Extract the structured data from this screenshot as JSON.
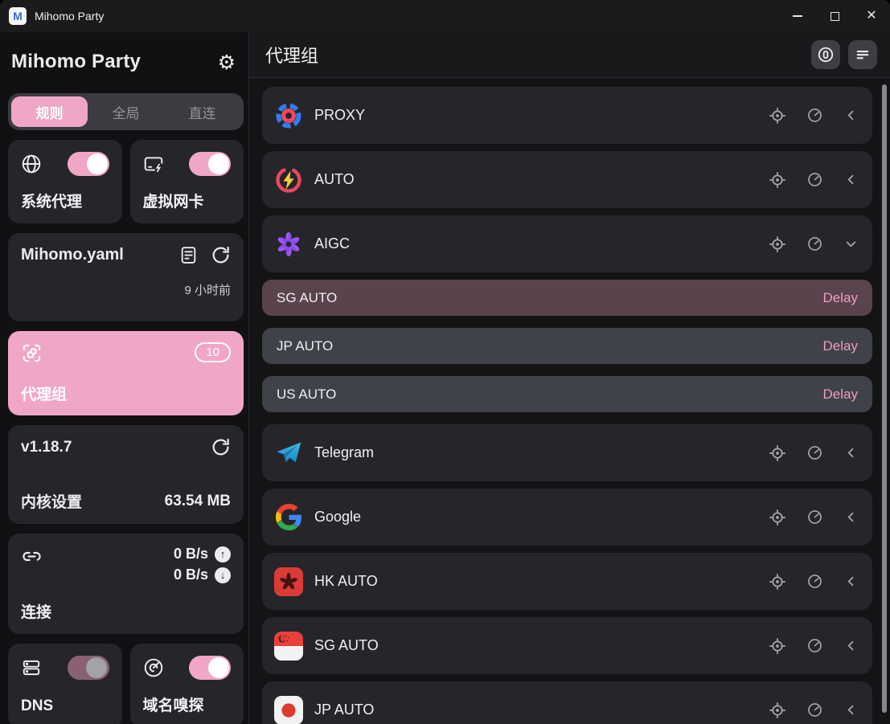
{
  "window": {
    "title": "Mihomo Party",
    "controls": {
      "minimize": "minimize",
      "maximize": "maximize",
      "close": "✕"
    }
  },
  "colors": {
    "accent_pink": "#f0a7c7",
    "delay_pink": "#f09cc5",
    "selected_subrow": "#59434d",
    "card_bg": "#26262a",
    "subrow_bg": "#404249"
  },
  "sidebar": {
    "app_title": "Mihomo Party",
    "settings_icon": "gear-icon",
    "tabs": [
      {
        "label": "规则",
        "active": true
      },
      {
        "label": "全局",
        "active": false
      },
      {
        "label": "直连",
        "active": false
      }
    ],
    "system_proxy": {
      "label": "系统代理",
      "icon": "globe-icon",
      "on": true
    },
    "tun": {
      "label": "虚拟网卡",
      "icon": "network-card-icon",
      "on": true
    },
    "profile": {
      "name": "Mihomo.yaml",
      "updated": "9 小时前",
      "icons": [
        "document-icon",
        "refresh-icon"
      ]
    },
    "proxy_groups_card": {
      "label": "代理组",
      "badge": "10",
      "icon": "group-scan-icon"
    },
    "core": {
      "version": "v1.18.7",
      "label": "内核设置",
      "memory": "63.54 MB",
      "icon": "refresh-icon"
    },
    "connections": {
      "label": "连接",
      "upload": "0 B/s",
      "download": "0 B/s",
      "icon": "link-icon",
      "up_icon": "up-arrow-circle-icon",
      "down_icon": "down-arrow-circle-icon"
    },
    "dns": {
      "label": "DNS",
      "icon": "server-stack-icon",
      "on": false
    },
    "sniff": {
      "label": "域名嗅探",
      "icon": "radar-icon",
      "on": true
    }
  },
  "main": {
    "title": "代理组",
    "header_buttons": [
      {
        "name": "zero-circle-icon"
      },
      {
        "name": "text-lines-icon"
      }
    ],
    "groups": [
      {
        "name": "PROXY",
        "icon": "proxy",
        "expanded": false
      },
      {
        "name": "AUTO",
        "icon": "auto",
        "expanded": false
      },
      {
        "name": "AIGC",
        "icon": "openai",
        "expanded": true,
        "children": [
          {
            "name": "SG AUTO",
            "delay_label": "Delay",
            "selected": true
          },
          {
            "name": "JP AUTO",
            "delay_label": "Delay",
            "selected": false
          },
          {
            "name": "US AUTO",
            "delay_label": "Delay",
            "selected": false
          }
        ]
      },
      {
        "name": "Telegram",
        "icon": "telegram",
        "expanded": false
      },
      {
        "name": "Google",
        "icon": "google",
        "expanded": false
      },
      {
        "name": "HK AUTO",
        "icon": "flag-hk",
        "expanded": false
      },
      {
        "name": "SG AUTO",
        "icon": "flag-sg",
        "expanded": false
      },
      {
        "name": "JP AUTO",
        "icon": "flag-jp",
        "expanded": false
      }
    ]
  }
}
